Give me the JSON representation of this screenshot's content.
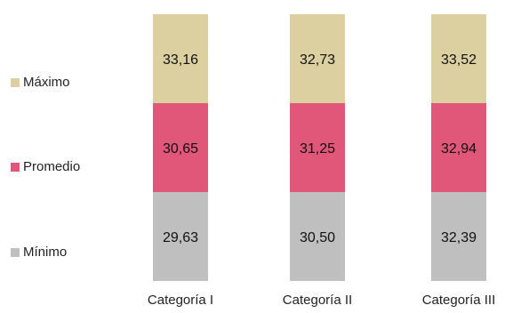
{
  "chart_data": {
    "type": "bar",
    "stacked": true,
    "categories": [
      "Categoría I",
      "Categoría II",
      "Categoría III"
    ],
    "series": [
      {
        "name": "Mínimo",
        "values": [
          29.63,
          30.5,
          32.39
        ],
        "labels": [
          "29,63",
          "30,50",
          "32,39"
        ],
        "color": "#bfbfbf"
      },
      {
        "name": "Promedio",
        "values": [
          30.65,
          31.25,
          32.94
        ],
        "labels": [
          "30,65",
          "31,25",
          "32,94"
        ],
        "color": "#e0577a"
      },
      {
        "name": "Máximo",
        "values": [
          33.16,
          32.73,
          33.52
        ],
        "labels": [
          "33,16",
          "32,73",
          "33,52"
        ],
        "color": "#ddd0a0"
      }
    ],
    "legend": [
      "Máximo",
      "Promedio",
      "Mínimo"
    ],
    "legend_position": "left",
    "grid": false
  }
}
